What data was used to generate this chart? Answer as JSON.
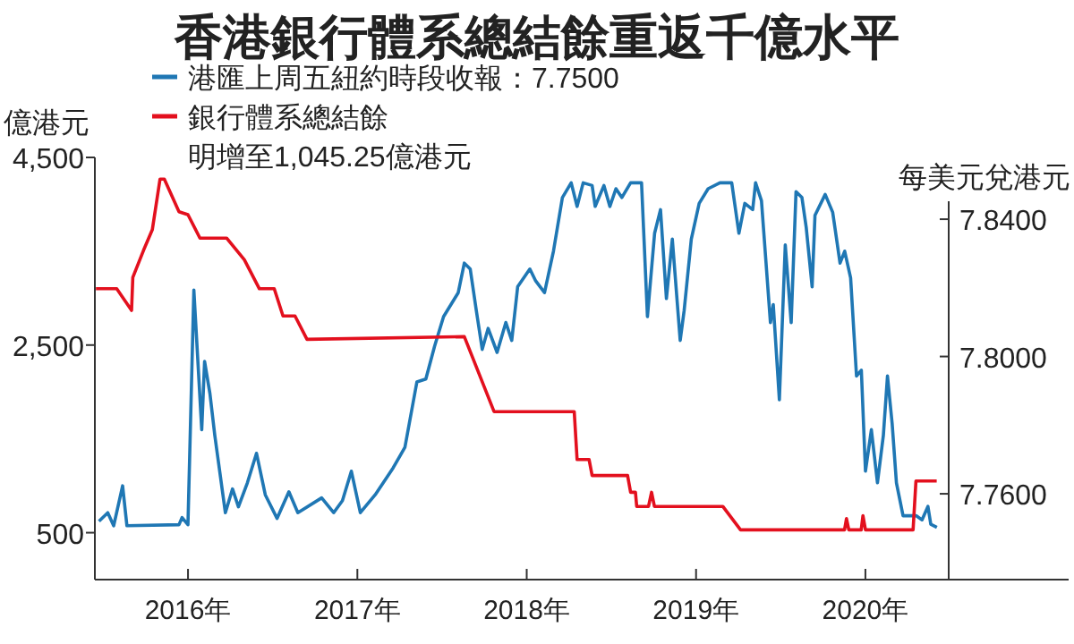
{
  "chart_data": {
    "type": "line",
    "title": "香港銀行體系總結餘重返千億水平",
    "ylabel": "億港元",
    "y2label": "每美元兌港元",
    "legend": "top left",
    "xlim": [
      2015.45,
      2021.2
    ],
    "xticks": [
      {
        "value": 2016,
        "label": "2016年"
      },
      {
        "value": 2017,
        "label": "2017年"
      },
      {
        "value": 2018,
        "label": "2018年"
      },
      {
        "value": 2019,
        "label": "2019年"
      },
      {
        "value": 2020,
        "label": "2020年"
      }
    ],
    "ylim": [
      0,
      4500
    ],
    "yticks": [
      {
        "value": 500,
        "label": "500"
      },
      {
        "value": 2500,
        "label": "2,500"
      },
      {
        "value": 4500,
        "label": "4,500"
      }
    ],
    "y2lim": [
      7.735,
      7.858
    ],
    "y2ticks": [
      {
        "value": 7.76,
        "label": "7.7600"
      },
      {
        "value": 7.8,
        "label": "7.8000"
      },
      {
        "value": 7.84,
        "label": "7.8400"
      }
    ],
    "annotations": [
      "明增至1,045.25億港元"
    ],
    "series": [
      {
        "name": "港匯上周五紐約時段收報：7.7500",
        "color": "#1f77b4",
        "axis": "y2",
        "x": [
          2015.474,
          2015.526,
          2015.561,
          2015.614,
          2015.639,
          2015.947,
          2015.965,
          2016.0,
          2016.035,
          2016.081,
          2016.098,
          2016.13,
          2016.158,
          2016.221,
          2016.263,
          2016.298,
          2016.351,
          2016.404,
          2016.456,
          2016.526,
          2016.596,
          2016.649,
          2016.789,
          2016.86,
          2016.912,
          2016.965,
          2017.018,
          2017.105,
          2017.211,
          2017.281,
          2017.351,
          2017.404,
          2017.456,
          2017.509,
          2017.596,
          2017.632,
          2017.667,
          2017.702,
          2017.737,
          2017.772,
          2017.825,
          2017.877,
          2017.912,
          2017.947,
          2018.018,
          2018.053,
          2018.105,
          2018.158,
          2018.211,
          2018.263,
          2018.298,
          2018.333,
          2018.386,
          2018.404,
          2018.456,
          2018.491,
          2018.527,
          2018.562,
          2018.614,
          2018.678,
          2018.713,
          2018.755,
          2018.79,
          2018.825,
          2018.86,
          2018.906,
          2018.93,
          2018.972,
          2019.018,
          2019.071,
          2019.141,
          2019.211,
          2019.253,
          2019.288,
          2019.334,
          2019.351,
          2019.386,
          2019.439,
          2019.456,
          2019.492,
          2019.527,
          2019.562,
          2019.59,
          2019.625,
          2019.65,
          2019.685,
          2019.702,
          2019.762,
          2019.807,
          2019.85,
          2019.878,
          2019.913,
          2019.948,
          2019.976,
          2020.0,
          2020.035,
          2020.071,
          2020.106,
          2020.13,
          2020.158,
          2020.183,
          2020.222,
          2020.299,
          2020.334,
          2020.369,
          2020.386,
          2020.422
        ],
        "values": [
          7.752,
          7.7545,
          7.7507,
          7.7623,
          7.7507,
          7.751,
          7.7531,
          7.751,
          7.8194,
          7.7787,
          7.7986,
          7.7891,
          7.777,
          7.7545,
          7.7614,
          7.7562,
          7.7632,
          7.7718,
          7.7597,
          7.7528,
          7.7606,
          7.7545,
          7.7588,
          7.7545,
          7.758,
          7.7666,
          7.7545,
          7.7597,
          7.7675,
          7.7735,
          7.7926,
          7.7934,
          7.803,
          7.8116,
          7.8186,
          7.8272,
          7.8255,
          7.8134,
          7.8021,
          7.8082,
          7.8012,
          7.8099,
          7.8047,
          7.8203,
          7.8255,
          7.822,
          7.8186,
          7.8307,
          7.8463,
          7.8506,
          7.8437,
          7.8506,
          7.8498,
          7.8437,
          7.8498,
          7.8437,
          7.8489,
          7.8463,
          7.8506,
          7.8506,
          7.8116,
          7.8359,
          7.8428,
          7.8169,
          7.8342,
          7.8047,
          7.8134,
          7.8342,
          7.8446,
          7.8489,
          7.8506,
          7.8506,
          7.8359,
          7.8446,
          7.8428,
          7.8506,
          7.8454,
          7.8099,
          7.8151,
          7.7874,
          7.8325,
          7.8099,
          7.848,
          7.8463,
          7.8376,
          7.8203,
          7.8411,
          7.8472,
          7.842,
          7.8272,
          7.8307,
          7.8229,
          7.7943,
          7.796,
          7.7666,
          7.7787,
          7.7632,
          7.777,
          7.7943,
          7.7805,
          7.7632,
          7.7536,
          7.7536,
          7.7524,
          7.7563,
          7.7511,
          7.7502
        ]
      },
      {
        "name": "銀行體系總結餘",
        "color": "#e3101e",
        "x": [
          2015.456,
          2015.579,
          2015.667,
          2015.674,
          2015.737,
          2015.789,
          2015.835,
          2015.86,
          2015.947,
          2016.0,
          2016.07,
          2016.228,
          2016.333,
          2016.421,
          2016.509,
          2016.561,
          2016.632,
          2016.702,
          2017.632,
          2017.807,
          2018.053,
          2018.281,
          2018.298,
          2018.368,
          2018.386,
          2018.596,
          2018.614,
          2018.642,
          2018.649,
          2018.719,
          2018.737,
          2018.754,
          2019.158,
          2019.263,
          2019.877,
          2019.888,
          2019.902,
          2019.975,
          2019.986,
          2020.0,
          2020.281,
          2020.298,
          2020.333,
          2020.421
        ],
        "values": [
          3100,
          3100,
          2870,
          3220,
          3510,
          3730,
          4270,
          4270,
          3920,
          3890,
          3640,
          3640,
          3410,
          3100,
          3100,
          2810,
          2810,
          2560,
          2590,
          1790,
          1790,
          1790,
          1280,
          1280,
          1110,
          1110,
          930,
          930,
          780,
          780,
          930,
          780,
          780,
          530,
          530,
          650,
          530,
          530,
          680,
          530,
          530,
          1050,
          1050,
          1050
        ]
      }
    ]
  }
}
